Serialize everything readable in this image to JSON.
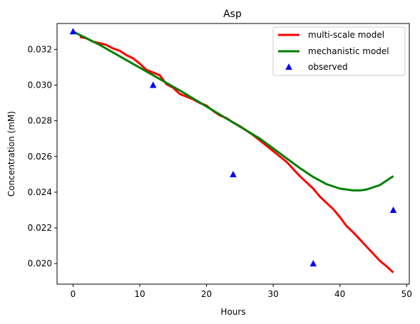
{
  "chart_data": {
    "type": "line",
    "title": "Asp",
    "xlabel": "Hours",
    "ylabel": "Concentration (mM)",
    "xlim": [
      -2.4,
      50.4
    ],
    "ylim": [
      0.01885,
      0.03345
    ],
    "xticks": [
      0,
      10,
      20,
      30,
      40,
      50
    ],
    "yticks": [
      0.02,
      0.022,
      0.024,
      0.026,
      0.028,
      0.03,
      0.032
    ],
    "xtick_labels": [
      "0",
      "10",
      "20",
      "30",
      "40",
      "50"
    ],
    "ytick_labels": [
      "0.020",
      "0.022",
      "0.024",
      "0.026",
      "0.028",
      "0.030",
      "0.032"
    ],
    "grid": false,
    "legend_position": "top-right",
    "series": [
      {
        "name": "multi-scale model",
        "kind": "line",
        "color": "#ff0000",
        "x": [
          1,
          2,
          3,
          4,
          5,
          6,
          7,
          8,
          9,
          10,
          11,
          12,
          13,
          14,
          15,
          16,
          17,
          18,
          19,
          20,
          21,
          22,
          23,
          24,
          25,
          26,
          27,
          28,
          29,
          30,
          31,
          32,
          33,
          34,
          35,
          36,
          37,
          38,
          39,
          40,
          41,
          42,
          43,
          44,
          45,
          46,
          47,
          48
        ],
        "y": [
          0.0327,
          0.03262,
          0.03243,
          0.03235,
          0.03225,
          0.03205,
          0.03192,
          0.03168,
          0.0315,
          0.0312,
          0.03085,
          0.0307,
          0.03055,
          0.03005,
          0.02985,
          0.0295,
          0.02935,
          0.0292,
          0.029,
          0.02885,
          0.02855,
          0.0283,
          0.02815,
          0.0279,
          0.0277,
          0.02745,
          0.0272,
          0.0269,
          0.0266,
          0.0263,
          0.026,
          0.0257,
          0.0253,
          0.0249,
          0.02455,
          0.0242,
          0.02375,
          0.0234,
          0.02305,
          0.0226,
          0.0221,
          0.02175,
          0.02135,
          0.02095,
          0.02055,
          0.02015,
          0.01985,
          0.0195
        ]
      },
      {
        "name": "mechanistic model",
        "kind": "line",
        "color": "#008000",
        "x": [
          0,
          4,
          8,
          12,
          16,
          20,
          24,
          28,
          32,
          34,
          36,
          38,
          40,
          42,
          43,
          44,
          46,
          48
        ],
        "y": [
          0.033,
          0.03225,
          0.0314,
          0.03055,
          0.0297,
          0.0288,
          0.0279,
          0.027,
          0.0259,
          0.02535,
          0.02485,
          0.02445,
          0.0242,
          0.0241,
          0.0241,
          0.02415,
          0.0244,
          0.0249
        ]
      },
      {
        "name": "observed",
        "kind": "scatter",
        "marker": "triangle",
        "color": "#0000ff",
        "x": [
          0,
          12,
          24,
          36,
          48
        ],
        "y": [
          0.033,
          0.03,
          0.025,
          0.02,
          0.023
        ]
      }
    ]
  }
}
